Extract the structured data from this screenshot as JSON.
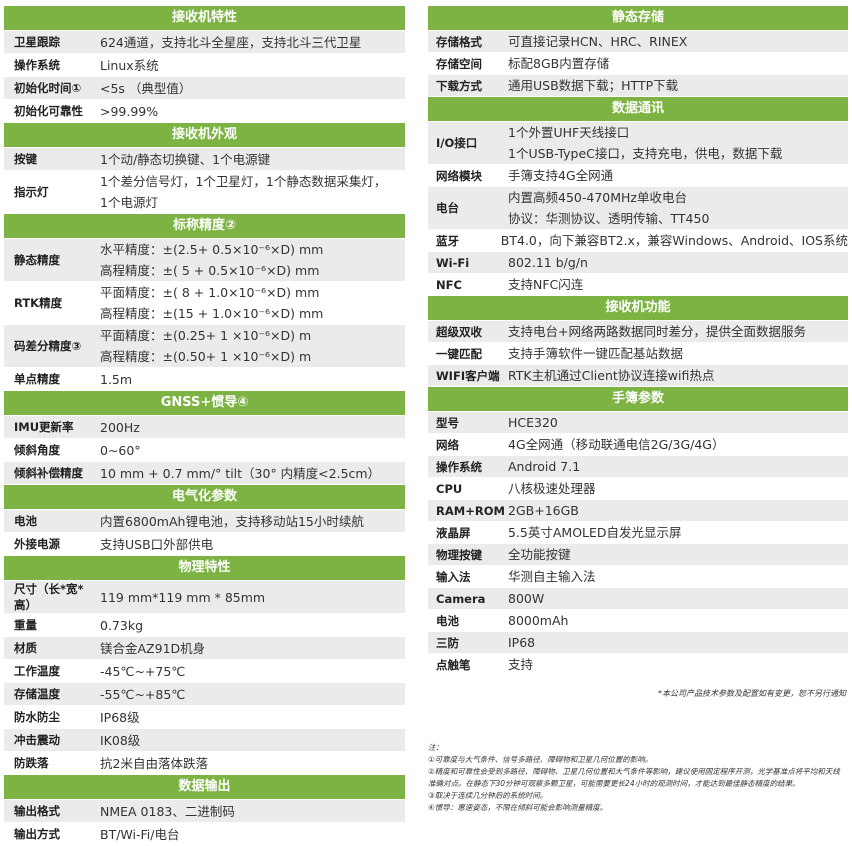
{
  "left": [
    {
      "title": "接收机特性",
      "rows": [
        {
          "label": "卫星跟踪",
          "lines": [
            "624通道，支持北斗全星座，支持北斗三代卫星"
          ]
        },
        {
          "label": "操作系统",
          "lines": [
            "Linux系统"
          ]
        },
        {
          "label": "初始化时间①",
          "lines": [
            "<5s （典型值）"
          ]
        },
        {
          "label": "初始化可靠性",
          "lines": [
            ">99.99%"
          ]
        }
      ]
    },
    {
      "title": "接收机外观",
      "rows": [
        {
          "label": "按键",
          "lines": [
            "1个动/静态切换键、1个电源键"
          ]
        },
        {
          "label": "指示灯",
          "lines": [
            "1个差分信号灯，1个卫星灯，1个静态数据采集灯，",
            "1个电源灯"
          ]
        }
      ]
    },
    {
      "title": "标称精度②",
      "rows": [
        {
          "label": "静态精度",
          "lines": [
            "水平精度：±(2.5+ 0.5×10⁻⁶×D) mm",
            "高程精度：±( 5 + 0.5×10⁻⁶×D) mm"
          ]
        },
        {
          "label": "RTK精度",
          "lines": [
            "平面精度：±( 8 + 1.0×10⁻⁶×D) mm",
            "高程精度：±(15 + 1.0×10⁻⁶×D) mm"
          ]
        },
        {
          "label": "码差分精度③",
          "lines": [
            "平面精度：±(0.25+ 1 ×10⁻⁶×D) m",
            "高程精度：±(0.50+ 1 ×10⁻⁶×D) m"
          ]
        },
        {
          "label": "单点精度",
          "lines": [
            "1.5m"
          ]
        }
      ]
    },
    {
      "title": "GNSS+惯导④",
      "rows": [
        {
          "label": "IMU更新率",
          "lines": [
            "200Hz"
          ]
        },
        {
          "label": "倾斜角度",
          "lines": [
            "0~60°"
          ]
        },
        {
          "label": "倾斜补偿精度",
          "lines": [
            "10 mm + 0.7 mm/° tilt（30° 内精度<2.5cm）"
          ]
        }
      ]
    },
    {
      "title": "电气化参数",
      "rows": [
        {
          "label": "电池",
          "lines": [
            "内置6800mAh锂电池，支持移动站15小时续航"
          ]
        },
        {
          "label": "外接电源",
          "lines": [
            "支持USB口外部供电"
          ]
        }
      ]
    },
    {
      "title": "物理特性",
      "rows": [
        {
          "label": "尺寸（长*宽*高）",
          "lines": [
            "119 mm*119 mm * 85mm"
          ]
        },
        {
          "label": "重量",
          "lines": [
            "0.73kg"
          ]
        },
        {
          "label": "材质",
          "lines": [
            "镁合金AZ91D机身"
          ]
        },
        {
          "label": "工作温度",
          "lines": [
            "-45℃~+75℃"
          ]
        },
        {
          "label": "存储温度",
          "lines": [
            "-55℃~+85℃"
          ]
        },
        {
          "label": "防水防尘",
          "lines": [
            "IP68级"
          ]
        },
        {
          "label": "冲击震动",
          "lines": [
            "IK08级"
          ]
        },
        {
          "label": "防跌落",
          "lines": [
            "抗2米自由落体跌落"
          ]
        }
      ]
    },
    {
      "title": "数据输出",
      "rows": [
        {
          "label": "输出格式",
          "lines": [
            "NMEA 0183、二进制码"
          ]
        },
        {
          "label": "输出方式",
          "lines": [
            "BT/Wi-Fi/电台"
          ]
        }
      ]
    }
  ],
  "right": [
    {
      "title": "静态存储",
      "rows": [
        {
          "label": "存储格式",
          "lines": [
            "可直接记录HCN、HRC、RINEX"
          ]
        },
        {
          "label": "存储空间",
          "lines": [
            "标配8GB内置存储"
          ]
        },
        {
          "label": "下载方式",
          "lines": [
            "通用USB数据下载；HTTP下载"
          ]
        }
      ]
    },
    {
      "title": "数据通讯",
      "rows": [
        {
          "label": "I/O接口",
          "lines": [
            "1个外置UHF天线接口",
            "1个USB-TypeC接口，支持充电，供电，数据下载"
          ]
        },
        {
          "label": "网络模块",
          "lines": [
            "手簿支持4G全网通"
          ]
        },
        {
          "label": "电台",
          "lines": [
            "内置高频450-470MHz单收电台",
            "协议：华测协议、透明传输、TT450"
          ]
        },
        {
          "label": "蓝牙",
          "lines": [
            "BT4.0，向下兼容BT2.x，兼容Windows、Android、IOS系统"
          ]
        },
        {
          "label": "Wi-Fi",
          "lines": [
            "802.11 b/g/n"
          ]
        },
        {
          "label": "NFC",
          "lines": [
            "支持NFC闪连"
          ]
        }
      ]
    },
    {
      "title": "接收机功能",
      "rows": [
        {
          "label": "超级双收",
          "lines": [
            "支持电台+网络两路数据同时差分，提供全面数据服务"
          ]
        },
        {
          "label": "一键匹配",
          "lines": [
            "支持手簿软件一键匹配基站数据"
          ]
        },
        {
          "label": "WIFI客户端",
          "lines": [
            "RTK主机通过Client协议连接wifi热点"
          ]
        }
      ]
    },
    {
      "title": "手簿参数",
      "rows": [
        {
          "label": "型号",
          "lines": [
            "HCE320"
          ]
        },
        {
          "label": "网络",
          "lines": [
            "4G全网通（移动联通电信2G/3G/4G）"
          ]
        },
        {
          "label": "操作系统",
          "lines": [
            "Android 7.1"
          ]
        },
        {
          "label": "CPU",
          "lines": [
            "八核极速处理器"
          ]
        },
        {
          "label": "RAM+ROM",
          "lines": [
            "2GB+16GB"
          ]
        },
        {
          "label": "液晶屏",
          "lines": [
            "5.5英寸AMOLED自发光显示屏"
          ]
        },
        {
          "label": "物理按键",
          "lines": [
            "全功能按键"
          ]
        },
        {
          "label": "输入法",
          "lines": [
            "华测自主输入法"
          ]
        },
        {
          "label": "Camera",
          "lines": [
            "800W"
          ]
        },
        {
          "label": "电池",
          "lines": [
            "8000mAh"
          ]
        },
        {
          "label": "三防",
          "lines": [
            "IP68"
          ]
        },
        {
          "label": "点触笔",
          "lines": [
            "支持"
          ]
        }
      ]
    }
  ],
  "disclaimer": "*本公司产品技术参数及配置如有变更，恕不另行通知",
  "notes": {
    "title": "注：",
    "items": [
      "①可靠度与大气条件、信号多路径、障碍物和卫星几何位置的影响。",
      "②精度和可靠性会受到多路径、障碍物、卫星几何位置和大气条件等影响，建议使用固定程序开测，光学基准点将平均和天线准确对点。在静态下30分钟可观察多颗卫星，可能需要更长24小时的观测时间，才能达到最佳静态精度的结果。",
      "③取决于连续几分钟后的系统时间。",
      "④惯导：惠速姿态，不限在倾斜可能会影响测量精度。"
    ]
  }
}
